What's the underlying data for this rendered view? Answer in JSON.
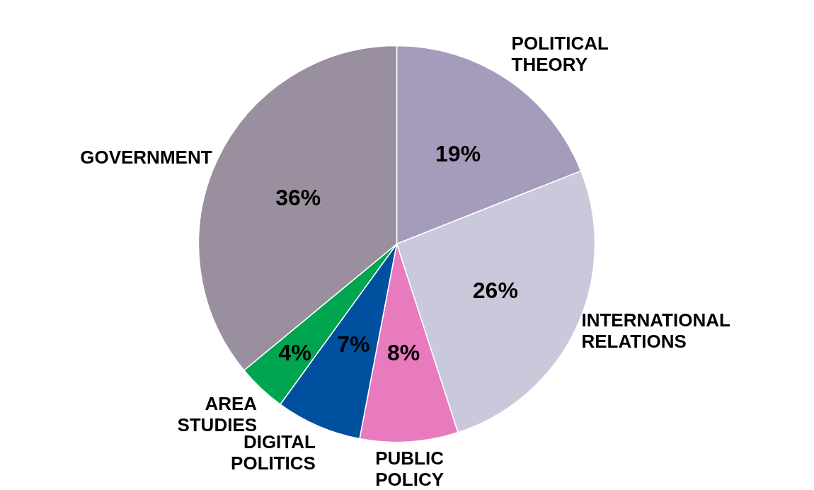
{
  "chart_data": {
    "type": "pie",
    "categories": [
      "POLITICAL THEORY",
      "INTERNATIONAL RELATIONS",
      "PUBLIC POLICY",
      "DIGITAL POLITICS",
      "AREA STUDIES",
      "GOVERNMENT"
    ],
    "values": [
      19,
      26,
      8,
      7,
      4,
      36
    ],
    "colors": [
      "#a59bba",
      "#c9c9db",
      "#e87bbd",
      "#0050a0",
      "#00a550",
      "#9a8f9e"
    ],
    "value_labels": [
      "19%",
      "26%",
      "8%",
      "7%",
      "4%",
      "36%"
    ]
  }
}
